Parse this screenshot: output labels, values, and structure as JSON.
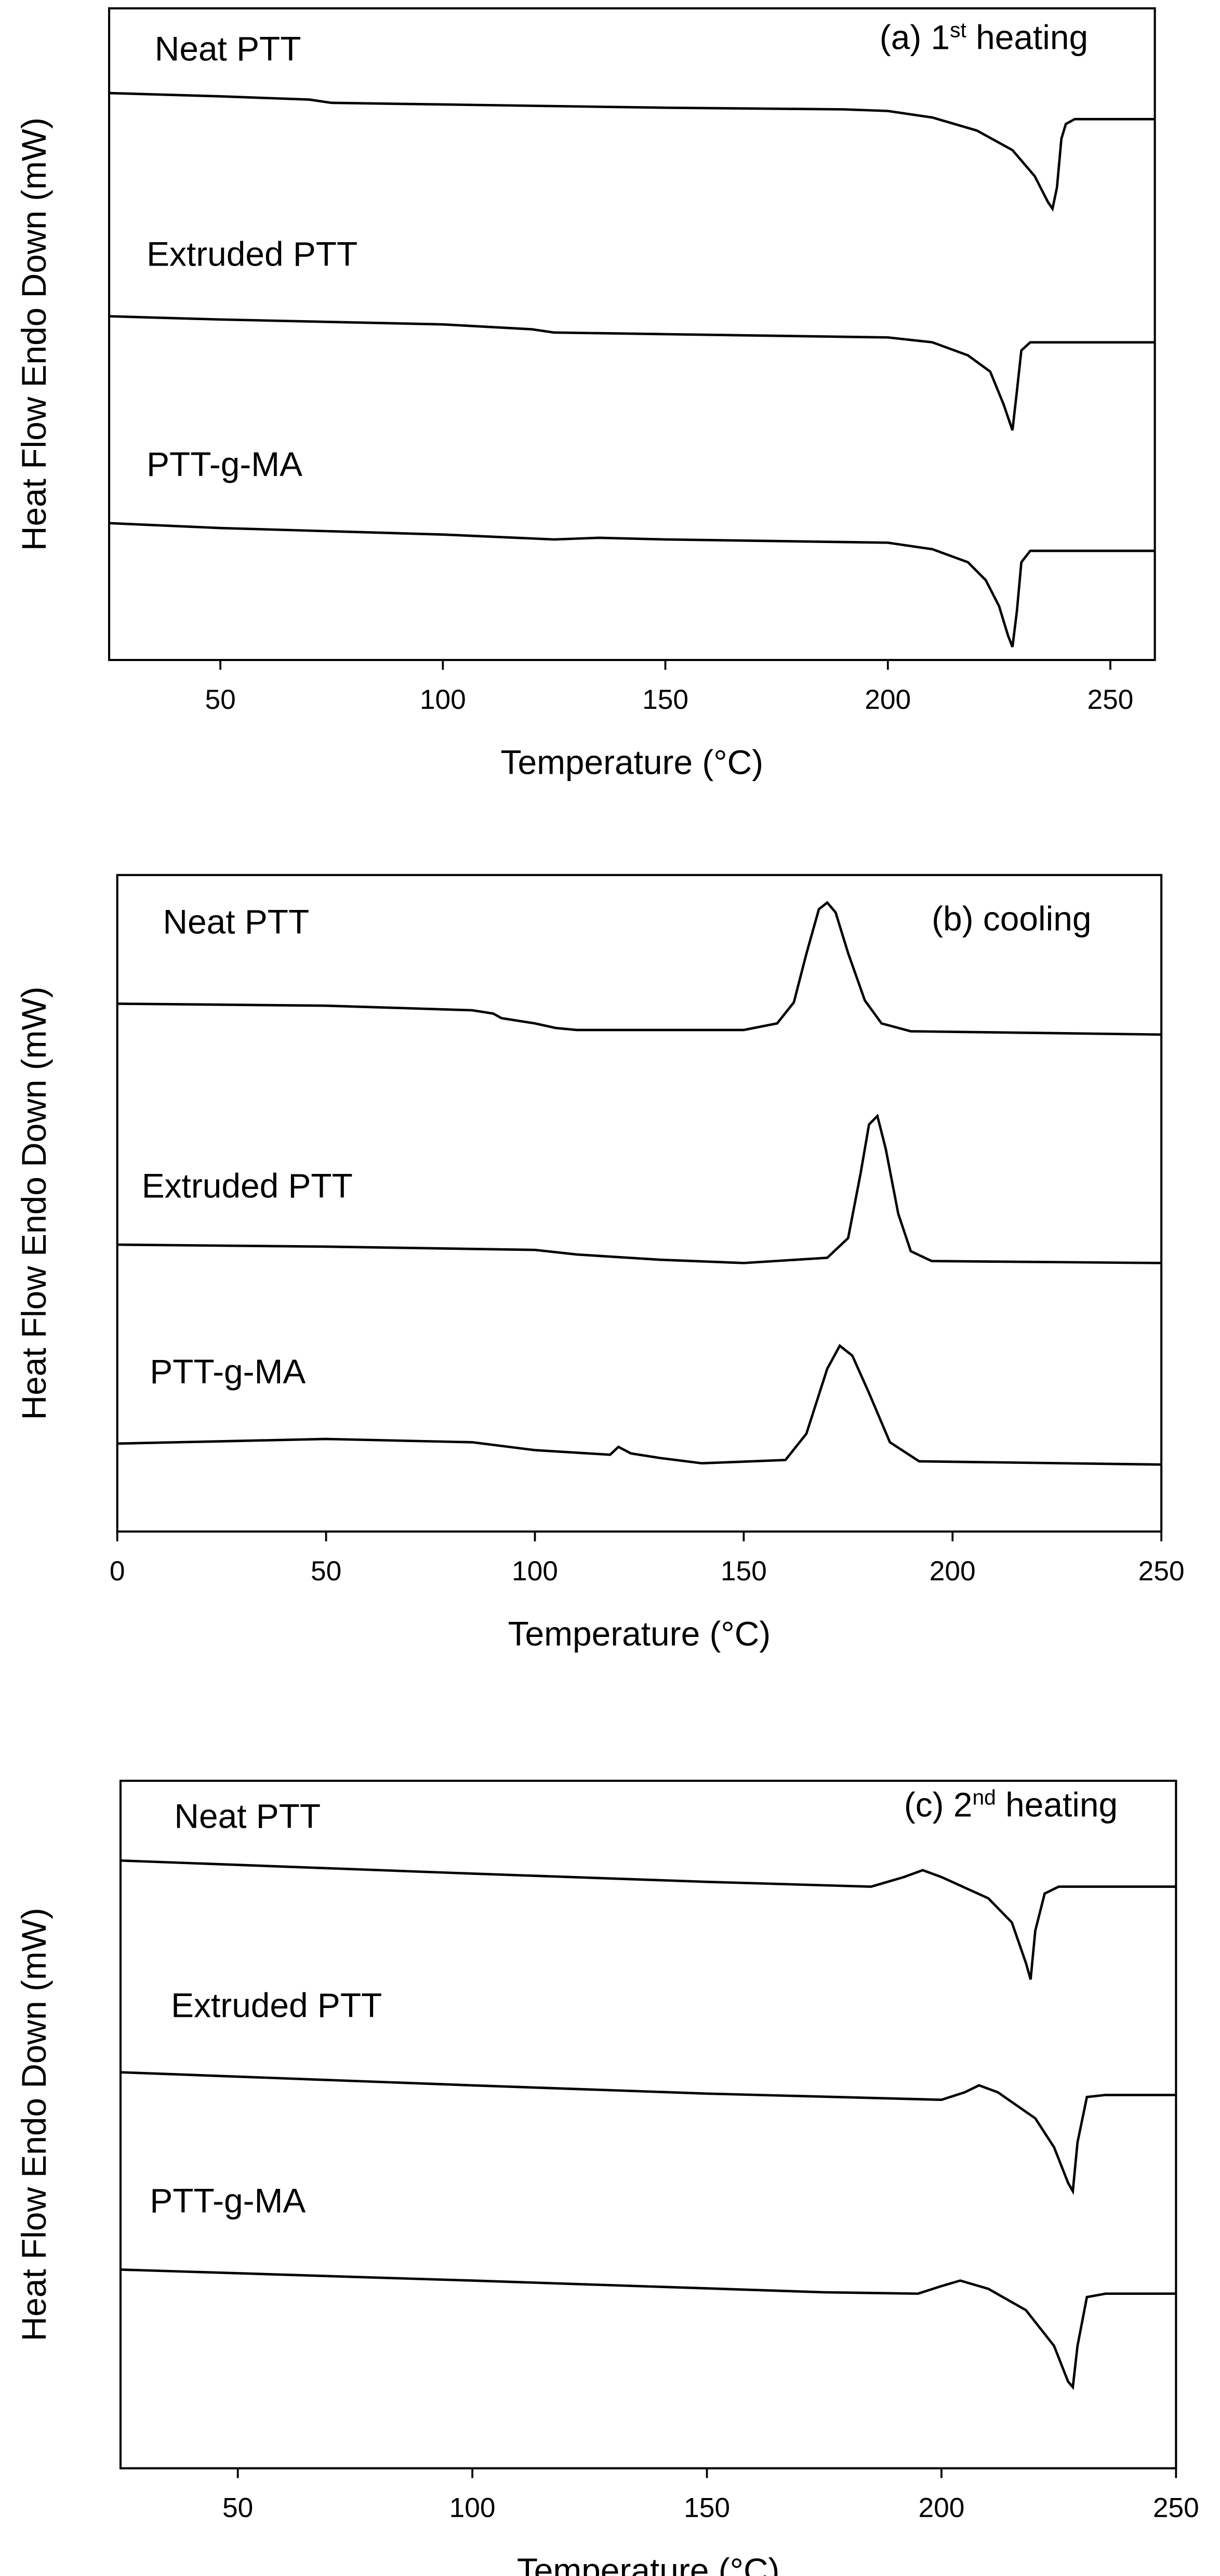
{
  "chart_data": [
    {
      "type": "line",
      "annotation": [
        "(a) 1",
        "st",
        " heating"
      ],
      "xlabel": "Temperature (°C)",
      "ylabel": "Heat Flow Endo Down (mW)",
      "xlim": [
        25,
        260
      ],
      "xticks": [
        50,
        100,
        150,
        200,
        250
      ],
      "ylim": [
        0,
        100
      ],
      "series": [
        {
          "name": "Neat PTT",
          "color": "#000000",
          "x": [
            25,
            50,
            70,
            75,
            100,
            150,
            190,
            200,
            210,
            220,
            228,
            233,
            236,
            237,
            238,
            239,
            240,
            242,
            260
          ],
          "values": [
            87,
            86.5,
            86,
            85.5,
            85.25,
            84.75,
            84.5,
            84.25,
            83.25,
            81.25,
            78.25,
            74.25,
            70.25,
            69.25,
            72.5,
            80,
            82.25,
            83,
            83
          ]
        },
        {
          "name": "Extruded PTT",
          "color": "#000000",
          "x": [
            25,
            50,
            100,
            120,
            125,
            150,
            200,
            210,
            218,
            223,
            226,
            228,
            229,
            230,
            232,
            260
          ],
          "values": [
            52.75,
            52.25,
            51.5,
            50.75,
            50.25,
            50,
            49.5,
            48.75,
            46.75,
            44.25,
            39.25,
            35.25,
            41.25,
            47.5,
            48.75,
            48.75
          ]
        },
        {
          "name": "PTT-g-MA",
          "color": "#000000",
          "x": [
            25,
            50,
            100,
            125,
            135,
            150,
            200,
            210,
            218,
            222,
            225,
            227,
            228,
            229,
            230,
            232,
            260
          ],
          "values": [
            21,
            20.25,
            19.25,
            18.5,
            18.75,
            18.5,
            18,
            17,
            15,
            12.25,
            8.25,
            3.75,
            2,
            7.5,
            15,
            16.75,
            16.75
          ]
        }
      ]
    },
    {
      "type": "line",
      "annotation": [
        "(b) cooling"
      ],
      "xlabel": "Temperature (°C)",
      "ylabel": "Heat Flow Endo Down (mW)",
      "xlim": [
        0,
        250
      ],
      "xticks": [
        0,
        50,
        100,
        150,
        200,
        250
      ],
      "ylim": [
        0,
        100
      ],
      "series": [
        {
          "name": "Neat PTT",
          "color": "#000000",
          "x": [
            0,
            50,
            85,
            90,
            92,
            100,
            105,
            110,
            150,
            158,
            162,
            165,
            168,
            170,
            172,
            175,
            179,
            183,
            190,
            250
          ],
          "values": [
            80.4,
            80.1,
            79.4,
            78.9,
            78.2,
            77.4,
            76.7,
            76.4,
            76.4,
            77.4,
            80.6,
            88.0,
            94.8,
            95.8,
            94.3,
            88.1,
            80.9,
            77.4,
            76.2,
            75.7
          ]
        },
        {
          "name": "Extruded PTT",
          "color": "#000000",
          "x": [
            0,
            50,
            100,
            110,
            130,
            150,
            170,
            175,
            178,
            180,
            182,
            184,
            187,
            190,
            195,
            250
          ],
          "values": [
            43.7,
            43.4,
            42.9,
            42.2,
            41.4,
            40.9,
            41.7,
            44.7,
            54.6,
            62.0,
            63.3,
            58.3,
            48.4,
            42.7,
            41.2,
            40.9
          ]
        },
        {
          "name": "PTT-g-MA",
          "color": "#000000",
          "x": [
            0,
            50,
            85,
            100,
            118,
            120,
            123,
            130,
            140,
            160,
            165,
            170,
            173,
            176,
            180,
            185,
            192,
            250
          ],
          "values": [
            13.4,
            14.1,
            13.6,
            12.4,
            11.7,
            12.9,
            11.9,
            11.2,
            10.4,
            10.9,
            14.9,
            24.8,
            28.3,
            26.8,
            21.1,
            13.6,
            10.7,
            10.2
          ]
        }
      ]
    },
    {
      "type": "line",
      "annotation": [
        "(c) 2",
        "nd",
        " heating"
      ],
      "xlabel": "Temperature (°C)",
      "ylabel": "Heat Flow Endo Down (mW)",
      "xlim": [
        25,
        250
      ],
      "xticks": [
        50,
        100,
        150,
        200,
        250
      ],
      "ylim": [
        0,
        100
      ],
      "series": [
        {
          "name": "Neat PTT",
          "color": "#000000",
          "x": [
            25,
            100,
            150,
            185,
            192,
            196,
            200,
            210,
            215,
            218,
            219,
            220,
            222,
            225,
            250
          ],
          "values": [
            88.4,
            86.5,
            85.3,
            84.6,
            86.0,
            87.0,
            86.0,
            82.9,
            79.4,
            73.5,
            71.1,
            78.2,
            83.6,
            84.6,
            84.6
          ]
        },
        {
          "name": "Extruded PTT",
          "color": "#000000",
          "x": [
            25,
            100,
            150,
            200,
            205,
            208,
            212,
            220,
            224,
            227,
            228,
            229,
            231,
            235,
            250
          ],
          "values": [
            57.6,
            55.7,
            54.5,
            53.6,
            54.7,
            55.7,
            54.7,
            50.9,
            46.7,
            41.5,
            40.3,
            47.4,
            54.0,
            54.3,
            54.3
          ]
        },
        {
          "name": "PTT-g-MA",
          "color": "#000000",
          "x": [
            25,
            100,
            175,
            195,
            200,
            204,
            210,
            218,
            224,
            227,
            228,
            229,
            231,
            235,
            250
          ],
          "values": [
            28.9,
            27.3,
            25.6,
            25.4,
            26.5,
            27.3,
            26.1,
            23.0,
            17.8,
            12.6,
            11.8,
            17.8,
            24.9,
            25.4,
            25.4
          ]
        }
      ]
    }
  ]
}
